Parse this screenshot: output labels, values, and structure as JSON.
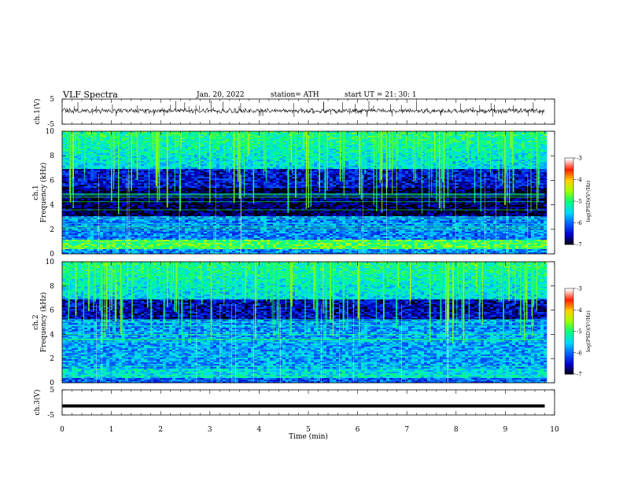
{
  "header": {
    "title": "VLF Spectra",
    "date": "Jan. 20, 2022",
    "station": "station= ATH",
    "start": "start  UT  =   21: 30: 1"
  },
  "chart_data": [
    {
      "type": "line",
      "ylabel": "ch.1(V)",
      "ylim": [
        -5,
        5
      ],
      "yticks": [
        "5",
        "-5"
      ],
      "description_level": 0.3
    },
    {
      "type": "heatmap",
      "ylabel_outer": "ch.1",
      "ylabel": "Frequency  (kHz)",
      "ylim": [
        0,
        10
      ],
      "yticks": [
        "0",
        "2",
        "4",
        "6",
        "8",
        "10"
      ],
      "colorbar": {
        "label": "log(PSD)(V²/Hz)",
        "range": [
          -7,
          -3
        ],
        "ticks": [
          "-3",
          "-4",
          "-5",
          "-6",
          "-7"
        ]
      }
    },
    {
      "type": "heatmap",
      "ylabel_outer": "ch.2",
      "ylabel": "Frequency  (kHz)",
      "ylim": [
        0,
        10
      ],
      "yticks": [
        "0",
        "2",
        "4",
        "6",
        "8",
        "10"
      ],
      "colorbar": {
        "label": "log(PSD)(V²/Hz)",
        "range": [
          -7,
          -3
        ],
        "ticks": [
          "-3",
          "-4",
          "-5",
          "-6",
          "-7"
        ]
      }
    },
    {
      "type": "line",
      "ylabel": "ch.3(V)",
      "ylim": [
        -5,
        5
      ],
      "yticks": [
        "5",
        "-5"
      ],
      "level": -1.4
    }
  ],
  "xaxis": {
    "label": "Time  (min)",
    "range": [
      0,
      10
    ],
    "data_end": 9.8,
    "ticks": [
      "0",
      "1",
      "2",
      "3",
      "4",
      "5",
      "6",
      "7",
      "8",
      "9",
      "10"
    ]
  },
  "colors": {
    "colormap": [
      "#000000",
      "#0000cc",
      "#0060ff",
      "#00d8ff",
      "#00ff80",
      "#a0ff00",
      "#ffd000",
      "#ff2000",
      "#ffffff"
    ]
  }
}
